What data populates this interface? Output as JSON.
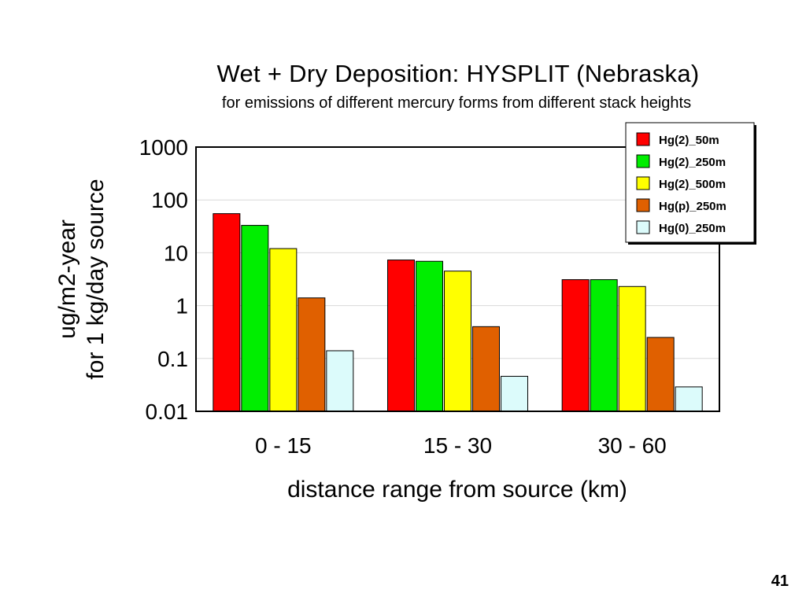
{
  "title": "Wet + Dry Deposition: HYSPLIT (Nebraska)",
  "subtitle": "for emissions of different mercury forms from different stack heights",
  "page_number": "41",
  "chart_data": {
    "type": "bar",
    "title": "Wet + Dry Deposition: HYSPLIT (Nebraska)",
    "subtitle": "for emissions of different mercury forms from different stack heights",
    "xlabel": "distance range from source (km)",
    "ylabel_lines": [
      "ug/m2-year",
      "for 1 kg/day source"
    ],
    "yscale": "log",
    "ylim": [
      0.01,
      1000
    ],
    "yticks": [
      "0.01",
      "0.1",
      "1",
      "10",
      "100",
      "1000"
    ],
    "categories": [
      "0 - 15",
      "15 - 30",
      "30 - 60"
    ],
    "grid": true,
    "legend_position": "top-right",
    "series": [
      {
        "name": "Hg(2)_50m",
        "color": "#ff0000",
        "values": [
          55,
          7.3,
          3.1
        ]
      },
      {
        "name": "Hg(2)_250m",
        "color": "#00ee00",
        "values": [
          33,
          6.9,
          3.1
        ]
      },
      {
        "name": "Hg(2)_500m",
        "color": "#ffff00",
        "values": [
          12,
          4.5,
          2.3
        ]
      },
      {
        "name": "Hg(p)_250m",
        "color": "#e06000",
        "values": [
          1.4,
          0.4,
          0.25
        ]
      },
      {
        "name": "Hg(0)_250m",
        "color": "#dcfbfb",
        "values": [
          0.14,
          0.046,
          0.029
        ]
      }
    ]
  }
}
